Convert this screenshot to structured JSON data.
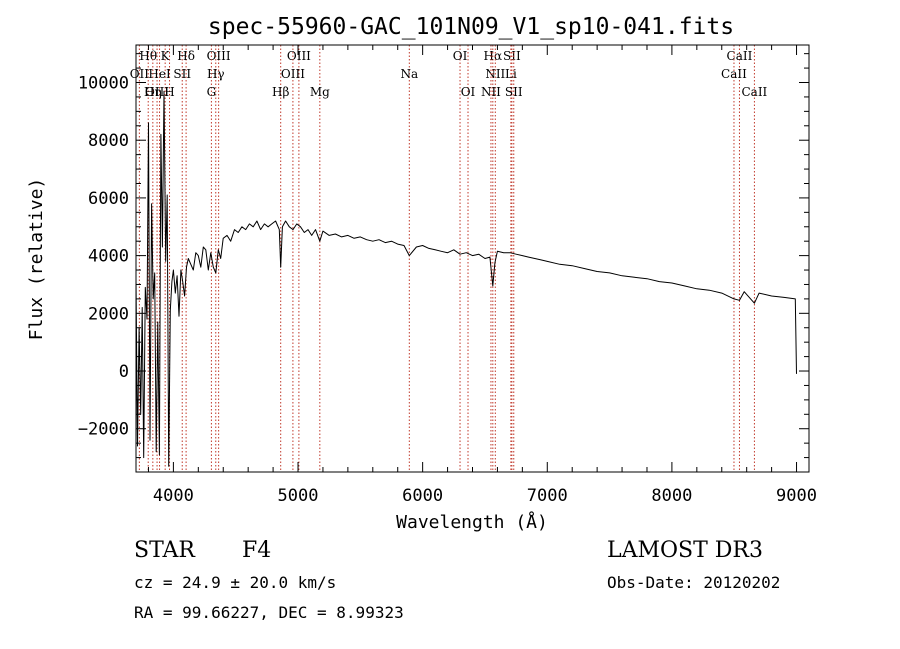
{
  "chart_data": {
    "type": "line",
    "title": "spec-55960-GAC_101N09_V1_sp10-041.fits",
    "xlabel": "Wavelength (Å)",
    "ylabel": "Flux (relative)",
    "xlim": [
      3700,
      9100
    ],
    "ylim": [
      -3500,
      11300
    ],
    "xticks": [
      4000,
      5000,
      6000,
      7000,
      8000,
      9000
    ],
    "yticks": [
      -2000,
      0,
      2000,
      4000,
      6000,
      8000,
      10000
    ],
    "lines": [
      {
        "name": "Hθ",
        "wave": 3798,
        "row": 0
      },
      {
        "name": "OII",
        "wave": 3727,
        "row": 1
      },
      {
        "name": "OIII",
        "wave": 3869,
        "row": 2
      },
      {
        "name": "K",
        "wave": 3934,
        "row": 0
      },
      {
        "name": "HeI",
        "wave": 3889,
        "row": 1
      },
      {
        "name": "Hη",
        "wave": 3835,
        "row": 2
      },
      {
        "name": "H",
        "wave": 3969,
        "row": 2
      },
      {
        "name": "SII",
        "wave": 4071,
        "row": 1
      },
      {
        "name": "Hδ",
        "wave": 4102,
        "row": 0
      },
      {
        "name": "OIII",
        "wave": 4363,
        "row": 0
      },
      {
        "name": "Hγ",
        "wave": 4340,
        "row": 1
      },
      {
        "name": "G",
        "wave": 4305,
        "row": 2
      },
      {
        "name": "OIII",
        "wave": 5007,
        "row": 0
      },
      {
        "name": "OIII",
        "wave": 4959,
        "row": 1
      },
      {
        "name": "Hβ",
        "wave": 4861,
        "row": 2
      },
      {
        "name": "Mg",
        "wave": 5175,
        "row": 2
      },
      {
        "name": "Na",
        "wave": 5893,
        "row": 1
      },
      {
        "name": "OI",
        "wave": 6300,
        "row": 0
      },
      {
        "name": "OI",
        "wave": 6364,
        "row": 2
      },
      {
        "name": "Hα",
        "wave": 6563,
        "row": 0
      },
      {
        "name": "NII",
        "wave": 6583,
        "row": 1
      },
      {
        "name": "NII",
        "wave": 6548,
        "row": 2
      },
      {
        "name": "SII",
        "wave": 6716,
        "row": 0
      },
      {
        "name": "Li",
        "wave": 6708,
        "row": 1
      },
      {
        "name": "SII",
        "wave": 6731,
        "row": 2
      },
      {
        "name": "CaII",
        "wave": 8542,
        "row": 0
      },
      {
        "name": "CaII",
        "wave": 8498,
        "row": 1
      },
      {
        "name": "CaII",
        "wave": 8662,
        "row": 2
      }
    ],
    "series": [
      {
        "name": "spectrum",
        "x": [
          3700,
          3712,
          3725,
          3738,
          3750,
          3762,
          3775,
          3788,
          3800,
          3812,
          3825,
          3838,
          3850,
          3862,
          3875,
          3888,
          3900,
          3912,
          3925,
          3938,
          3950,
          3962,
          3975,
          3988,
          4000,
          4015,
          4030,
          4045,
          4060,
          4075,
          4090,
          4105,
          4120,
          4140,
          4160,
          4180,
          4200,
          4220,
          4240,
          4260,
          4280,
          4300,
          4320,
          4340,
          4360,
          4380,
          4400,
          4430,
          4460,
          4490,
          4520,
          4550,
          4580,
          4610,
          4640,
          4670,
          4700,
          4730,
          4760,
          4790,
          4820,
          4850,
          4861,
          4875,
          4900,
          4930,
          4960,
          4990,
          5020,
          5050,
          5080,
          5110,
          5140,
          5175,
          5200,
          5250,
          5300,
          5350,
          5400,
          5450,
          5500,
          5550,
          5600,
          5650,
          5700,
          5750,
          5800,
          5850,
          5893,
          5950,
          6000,
          6050,
          6100,
          6150,
          6200,
          6250,
          6300,
          6350,
          6400,
          6450,
          6500,
          6540,
          6563,
          6580,
          6600,
          6650,
          6700,
          6750,
          6800,
          6850,
          6900,
          6950,
          7000,
          7100,
          7200,
          7300,
          7400,
          7500,
          7600,
          7700,
          7800,
          7900,
          8000,
          8100,
          8200,
          8300,
          8400,
          8498,
          8542,
          8580,
          8662,
          8700,
          8800,
          8900,
          8990,
          9000
        ],
        "y": [
          3200,
          -2600,
          1500,
          -1500,
          2200,
          -3000,
          2900,
          1800,
          8600,
          -2400,
          5800,
          2500,
          3400,
          -2800,
          1700,
          -2900,
          8200,
          4300,
          9700,
          3800,
          6100,
          -3300,
          2100,
          3100,
          3500,
          2700,
          3300,
          1900,
          3500,
          3100,
          2600,
          3600,
          3900,
          3700,
          3500,
          4100,
          4000,
          3600,
          4300,
          4200,
          3500,
          4100,
          3600,
          3400,
          4200,
          3900,
          4600,
          4700,
          4500,
          4900,
          4800,
          5000,
          4900,
          5100,
          5000,
          5200,
          4900,
          5100,
          5000,
          5100,
          5200,
          4900,
          3600,
          5000,
          5200,
          5000,
          4900,
          5100,
          5000,
          4800,
          4900,
          4700,
          4900,
          4500,
          4850,
          4700,
          4750,
          4650,
          4700,
          4600,
          4650,
          4550,
          4500,
          4550,
          4450,
          4500,
          4400,
          4350,
          4000,
          4300,
          4350,
          4250,
          4200,
          4150,
          4100,
          4200,
          4050,
          4100,
          4000,
          4050,
          3900,
          3950,
          2950,
          3750,
          4150,
          4100,
          4100,
          4050,
          4000,
          3950,
          3900,
          3850,
          3800,
          3700,
          3650,
          3550,
          3450,
          3400,
          3300,
          3250,
          3200,
          3100,
          3050,
          2950,
          2850,
          2800,
          2700,
          2500,
          2450,
          2750,
          2350,
          2700,
          2600,
          2550,
          2500,
          -100
        ]
      }
    ]
  },
  "info": {
    "object_class": "STAR",
    "subclass": "F4",
    "survey": "LAMOST DR3",
    "redshift": "cz = 24.9 ± 20.0 km/s",
    "obs_date": "Obs-Date: 20120202",
    "coords": "RA =  99.66227, DEC =   8.99323"
  }
}
